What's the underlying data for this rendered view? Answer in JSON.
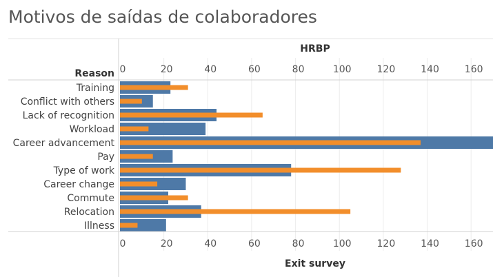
{
  "title": "Motivos de saídas de colaboradores",
  "chart_data": {
    "type": "bar",
    "orientation": "horizontal",
    "row_header": "Reason",
    "top_axis_label": "HRBP",
    "bottom_axis_label": "Exit survey",
    "categories": [
      "Training",
      "Conflict with others",
      "Lack of recognition",
      "Workload",
      "Career advancement",
      "Pay",
      "Type of work",
      "Career change",
      "Commute",
      "Relocation",
      "Illness"
    ],
    "series": [
      {
        "values": [
          23,
          15,
          44,
          39,
          175,
          24,
          78,
          30,
          22,
          37,
          21
        ],
        "color": "#4e79a7"
      },
      {
        "values": [
          31,
          10,
          65,
          13,
          137,
          15,
          128,
          17,
          31,
          105,
          8
        ],
        "color": "#f28e2b"
      }
    ],
    "xlim": [
      0,
      170
    ],
    "ticks": [
      0,
      20,
      40,
      60,
      80,
      100,
      120,
      140,
      160
    ],
    "grid": true
  }
}
